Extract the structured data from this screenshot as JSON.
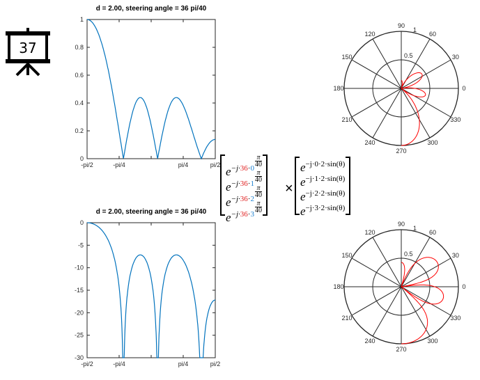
{
  "slide_number": "37",
  "plots": {
    "top_title": "d = 2.00, steering angle  = 36 pi/40",
    "bottom_title": "d = 2.00, steering angle  = 36 pi/40"
  },
  "chart_data": [
    {
      "type": "line",
      "title": "d = 2.00, steering angle  = 36 pi/40",
      "scale": "linear",
      "xlim": [
        -1.5708,
        1.5708
      ],
      "ylim": [
        0,
        1
      ],
      "xticks": [
        "-pi/2",
        "-pi/4",
        "0",
        "pi/4",
        "pi/2"
      ],
      "xtick_labels": [
        "-pi/2",
        "-pi/4",
        "",
        "pi/4",
        "pi/2"
      ],
      "yticks": [
        "0",
        "0.2",
        "0.4",
        "0.6",
        "0.8",
        "1"
      ],
      "model": {
        "elements": 4,
        "d": 2,
        "steering": "36 pi/40",
        "formula": "|sum_n exp(-j n (2 sin(theta) + 36*pi/40))| normalized"
      },
      "color": "#0072bd"
    },
    {
      "type": "line",
      "title": "d = 2.00, steering angle  = 36 pi/40",
      "scale": "dB",
      "xlim": [
        -1.5708,
        1.5708
      ],
      "ylim": [
        -30,
        0
      ],
      "xtick_labels": [
        "-pi/2",
        "-pi/4",
        "",
        "pi/4",
        "pi/2"
      ],
      "yticks": [
        "0",
        "-5",
        "-10",
        "-15",
        "-20",
        "-25",
        "-30"
      ],
      "color": "#0072bd"
    },
    {
      "type": "polar",
      "scale": "linear",
      "angle_labels": [
        "0",
        "30",
        "60",
        "90",
        "120",
        "150",
        "180",
        "210",
        "240",
        "270",
        "300",
        "330"
      ],
      "radial_labels": [
        "0.5",
        "1"
      ],
      "color": "#ff0000"
    },
    {
      "type": "polar",
      "scale": "dB+30 normalized",
      "angle_labels": [
        "0",
        "30",
        "60",
        "90",
        "120",
        "150",
        "180",
        "210",
        "240",
        "270",
        "300",
        "330"
      ],
      "radial_labels": [
        "0.5",
        "1"
      ],
      "color": "#ff0000"
    }
  ],
  "equation": {
    "left": [
      {
        "pre": "−j·",
        "steer": "36",
        "dot": "·",
        "n": "0",
        "num": "π",
        "den": "40"
      },
      {
        "pre": "−j·",
        "steer": "36",
        "dot": "·",
        "n": "1",
        "num": "π",
        "den": "40"
      },
      {
        "pre": "−j·",
        "steer": "36",
        "dot": "·",
        "n": "2",
        "num": "π",
        "den": "40"
      },
      {
        "pre": "−j·",
        "steer": "36",
        "dot": "·",
        "n": "3",
        "num": "π",
        "den": "40"
      }
    ],
    "base": "e",
    "times": "×",
    "right": [
      "−j·0·2·sin(θ)",
      "−j·1·2·sin(θ)",
      "−j·2·2·sin(θ)",
      "−j·3·2·sin(θ)"
    ]
  }
}
